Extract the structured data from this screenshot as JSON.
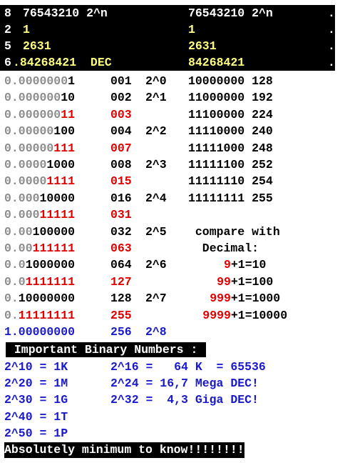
{
  "header": {
    "rows": [
      {
        "idx": "8",
        "left": "76543210 2^n",
        "right": "76543210 2^n",
        "dot": "."
      },
      {
        "idx": "2",
        "left": "1",
        "right": "1",
        "dot": "."
      },
      {
        "idx": "5",
        "left": "2631",
        "right": "2631",
        "dot": "."
      },
      {
        "idx": "6",
        "left": ".84268421  DEC",
        "right": "84268421",
        "dot": "."
      }
    ]
  },
  "binary_rows": [
    {
      "gray": "0.0000000",
      "dark": "1",
      "darkClass": "black",
      "mid": "001",
      "midClass": "black",
      "pow": "2^0",
      "right": "10000000 128",
      "rightClass": "black"
    },
    {
      "gray": "0.000000",
      "dark": "10",
      "darkClass": "black",
      "mid": "002",
      "midClass": "black",
      "pow": "2^1",
      "right": "11000000 192",
      "rightClass": "black"
    },
    {
      "gray": "0.000000",
      "dark": "11",
      "darkClass": "red",
      "mid": "003",
      "midClass": "red",
      "pow": "",
      "right": "11100000 224",
      "rightClass": "black"
    },
    {
      "gray": "0.00000",
      "dark": "100",
      "darkClass": "black",
      "mid": "004",
      "midClass": "black",
      "pow": "2^2",
      "right": "11110000 240",
      "rightClass": "black"
    },
    {
      "gray": "0.00000",
      "dark": "111",
      "darkClass": "red",
      "mid": "007",
      "midClass": "red",
      "pow": "",
      "right": "11111000 248",
      "rightClass": "black"
    },
    {
      "gray": "0.0000",
      "dark": "1000",
      "darkClass": "black",
      "mid": "008",
      "midClass": "black",
      "pow": "2^3",
      "right": "11111100 252",
      "rightClass": "black"
    },
    {
      "gray": "0.0000",
      "dark": "1111",
      "darkClass": "red",
      "mid": "015",
      "midClass": "red",
      "pow": "",
      "right": "11111110 254",
      "rightClass": "black"
    },
    {
      "gray": "0.000",
      "dark": "10000",
      "darkClass": "black",
      "mid": "016",
      "midClass": "black",
      "pow": "2^4",
      "right": "11111111 255",
      "rightClass": "black"
    },
    {
      "gray": "0.000",
      "dark": "11111",
      "darkClass": "red",
      "mid": "031",
      "midClass": "red",
      "pow": "",
      "right": "",
      "rightClass": "black"
    },
    {
      "gray": "0.00",
      "dark": "100000",
      "darkClass": "black",
      "mid": "032",
      "midClass": "black",
      "pow": "2^5",
      "right": " compare with",
      "rightClass": "black"
    },
    {
      "gray": "0.00",
      "dark": "111111",
      "darkClass": "red",
      "mid": "063",
      "midClass": "red",
      "pow": "",
      "right": "  Decimal:",
      "rightClass": "black"
    },
    {
      "gray": "0.0",
      "dark": "1000000",
      "darkClass": "black",
      "mid": "064",
      "midClass": "black",
      "pow": "2^6",
      "right": "",
      "rightClass": "black"
    },
    {
      "gray": "0.0",
      "dark": "1111111",
      "darkClass": "red",
      "mid": "127",
      "midClass": "red",
      "pow": "",
      "right": "",
      "rightClass": "black"
    },
    {
      "gray": "0.",
      "dark": "10000000",
      "darkClass": "black",
      "mid": "128",
      "midClass": "black",
      "pow": "2^7",
      "right": "",
      "rightClass": "black"
    },
    {
      "gray": "0.",
      "dark": "11111111",
      "darkClass": "red",
      "mid": "255",
      "midClass": "red",
      "pow": "",
      "right": "",
      "rightClass": "black"
    }
  ],
  "decimal_examples": [
    {
      "red": "9",
      "black": "+1=10"
    },
    {
      "red": "99",
      "black": "+1=100"
    },
    {
      "red": "999",
      "black": "+1=1000"
    },
    {
      "red": "9999",
      "black": "+1=10000"
    }
  ],
  "last_row": {
    "text": "1.00000000",
    "mid": "256",
    "pow": "2^8"
  },
  "important_title": " Important Binary Numbers : ",
  "important": [
    {
      "left": "2^10 = 1K",
      "right": "2^16 =   64 K  = 65536"
    },
    {
      "left": "2^20 = 1M",
      "right": "2^24 = 16,7 Mega DEC!"
    },
    {
      "left": "2^30 = 1G",
      "right": "2^32 =  4,3 Giga DEC!"
    },
    {
      "left": "2^40 = 1T",
      "right": ""
    },
    {
      "left": "2^50 = 1P",
      "right": ""
    }
  ],
  "footer": "Absolutely minimum to know!!!!!!!!",
  "colors": {
    "red": "#e00000",
    "blue": "#1a1acc",
    "gray": "#8c8c8c",
    "yellow": "#ffff80"
  }
}
